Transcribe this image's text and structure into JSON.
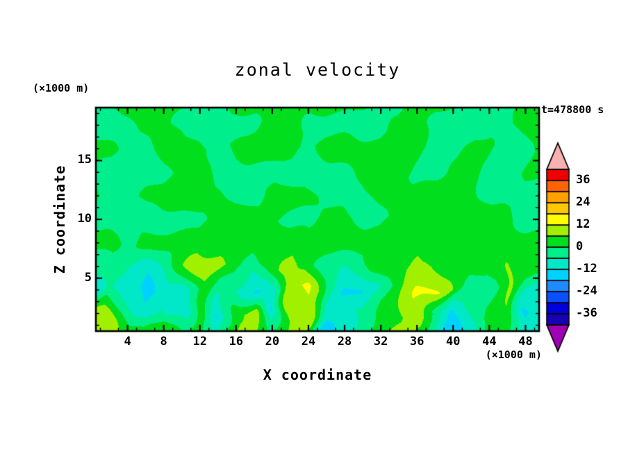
{
  "figure": {
    "title": "zonal velocity",
    "time_label": "t=478800 s",
    "z_axis_unit": "(×1000 m)",
    "x_axis_unit": "(×1000 m)",
    "x_axis_label": "X coordinate",
    "z_axis_label": "Z coordinate"
  },
  "chart_data": {
    "type": "heatmap",
    "subtype": "filled_contour",
    "title": "zonal velocity",
    "xlabel": "X coordinate",
    "ylabel": "Z coordinate",
    "x_axis_unit": "(×1000 m)",
    "z_axis_unit": "(×1000 m)",
    "time_annotation": "t=478800 s",
    "xlim": [
      0.5,
      49.5
    ],
    "zlim": [
      0.5,
      19.5
    ],
    "x_major_ticks": [
      4,
      8,
      12,
      16,
      20,
      24,
      28,
      32,
      36,
      40,
      44,
      48
    ],
    "x_minor_step": 2,
    "z_major_ticks": [
      5,
      10,
      15
    ],
    "z_minor_step": 1,
    "contour_interval": 6,
    "levels_min": -42,
    "grid_x": [
      0,
      2,
      4,
      6,
      8,
      10,
      12,
      14,
      16,
      18,
      20,
      22,
      24,
      26,
      28,
      30,
      32,
      34,
      36,
      38,
      40,
      42,
      44,
      46,
      48,
      50
    ],
    "grid_z": [
      20,
      18,
      16,
      14,
      12,
      10,
      8,
      6,
      4,
      2,
      0
    ],
    "values": [
      [
        -3,
        3,
        3,
        3,
        3,
        3,
        -3,
        -3,
        3,
        3,
        3,
        3,
        3,
        3,
        3,
        3,
        -4,
        -3,
        3,
        3,
        3,
        -4,
        -4,
        -3,
        3,
        3
      ],
      [
        -4,
        -4,
        -3,
        3,
        3,
        -4,
        -4,
        -4,
        -4,
        -3,
        3,
        3,
        -4,
        -4,
        -4,
        -4,
        -3,
        3,
        3,
        -4,
        -4,
        -4,
        -4,
        -3,
        3,
        3
      ],
      [
        3,
        3,
        -3,
        -3,
        3,
        4,
        4,
        -3,
        3,
        4,
        4,
        3,
        -3,
        3,
        4,
        4,
        3,
        3,
        3,
        -3,
        -3,
        3,
        3,
        -4,
        -3,
        3
      ],
      [
        -4,
        -4,
        -4,
        -4,
        -3,
        3,
        3,
        -4,
        -4,
        -4,
        -4,
        -3,
        -4,
        -4,
        -3,
        3,
        3,
        3,
        -3,
        -3,
        3,
        3,
        -3,
        -4,
        3,
        3
      ],
      [
        3,
        -3,
        -3,
        3,
        4,
        4,
        4,
        3,
        -3,
        -4,
        3,
        3,
        3,
        -4,
        -4,
        -3,
        3,
        4,
        4,
        4,
        3,
        3,
        -3,
        -4,
        -4,
        -3
      ],
      [
        -4,
        -4,
        -4,
        -4,
        -3,
        -3,
        -3,
        3,
        4,
        4,
        3,
        -3,
        -3,
        3,
        3,
        -3,
        -3,
        3,
        4,
        4,
        4,
        3,
        3,
        3,
        -3,
        -4
      ],
      [
        3,
        3,
        -3,
        3,
        3,
        3,
        4,
        4,
        4,
        4,
        5,
        4,
        3,
        3,
        5,
        4,
        4,
        5,
        4,
        3,
        3,
        3,
        3,
        3,
        3,
        3
      ],
      [
        -4,
        -4,
        -5,
        -9,
        -5,
        5,
        9,
        8,
        3,
        -4,
        5,
        9,
        4,
        -4,
        -5,
        -4,
        3,
        4,
        7,
        5,
        3,
        3,
        3,
        6,
        4,
        3
      ],
      [
        -13,
        -5,
        -9,
        -15,
        -9,
        -12,
        4,
        -4,
        -5,
        -13,
        -9,
        10,
        13,
        -4,
        -13,
        -13,
        -4,
        5,
        13,
        13,
        5,
        -5,
        -4,
        8,
        -9,
        -13
      ],
      [
        9,
        8,
        -5,
        -9,
        -5,
        -12,
        4,
        -13,
        5,
        9,
        -13,
        9,
        10,
        -9,
        -9,
        -4,
        3,
        5,
        9,
        -4,
        -13,
        -5,
        6,
        5,
        -13,
        -9
      ],
      [
        15,
        10,
        8,
        4,
        8,
        3,
        3,
        -4,
        7,
        8,
        3,
        8,
        4,
        -21,
        -7,
        -4,
        4,
        8,
        5,
        -5,
        -22,
        -9,
        3,
        4,
        -9,
        -5
      ]
    ],
    "colorbar": {
      "tick_labels": [
        "36",
        "24",
        "12",
        "0",
        "-12",
        "-24",
        "-36"
      ],
      "tick_values": [
        36,
        24,
        12,
        0,
        -12,
        -24,
        -36
      ],
      "band_colors": [
        "#1800B4",
        "#0000DC",
        "#0A50FF",
        "#1E8CFF",
        "#00D2FF",
        "#00E8C8",
        "#00EE8C",
        "#00DE1E",
        "#A0F000",
        "#FFFF00",
        "#FFC800",
        "#FFA000",
        "#FF6400",
        "#F00000"
      ],
      "over_arrow_color": "#F8B0B0",
      "under_arrow_color": "#A000B4"
    }
  }
}
